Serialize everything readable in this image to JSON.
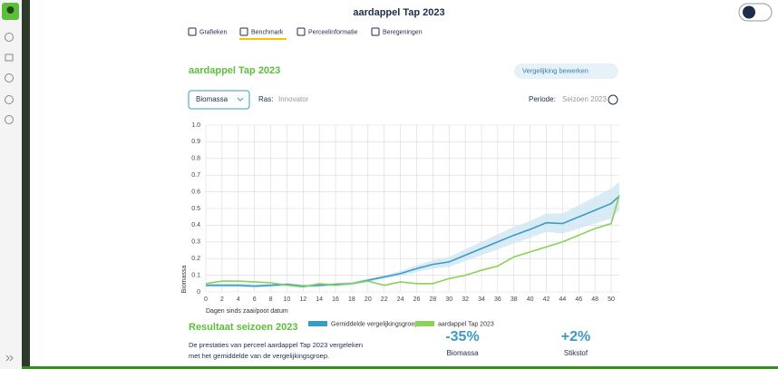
{
  "header": {
    "title": "aardappel Tap 2023"
  },
  "tabs": [
    "Grafieken",
    "Benchmark",
    "Perceelinformatie",
    "Beregeningen"
  ],
  "card": {
    "title": "aardappel Tap 2023",
    "button": "Vergelijking bewerken",
    "dropdown": "Biomassa",
    "ras_label": "Ras:",
    "ras_value": "Innovator",
    "periode_label": "Periode:",
    "periode_value": "Seizoen 2023"
  },
  "chart_data": {
    "type": "line",
    "xlabel": "Dagen sinds zaai/poot datum",
    "ylabel": "Biomassa",
    "x": [
      0,
      2,
      4,
      6,
      8,
      10,
      12,
      14,
      16,
      18,
      20,
      22,
      24,
      26,
      28,
      30,
      32,
      34,
      36,
      38,
      40,
      42,
      44,
      46,
      48,
      50,
      51
    ],
    "series": [
      {
        "name": "Gemiddelde vergelijkingsgroep",
        "color": "#3a9cc4",
        "values": [
          0.04,
          0.04,
          0.04,
          0.035,
          0.04,
          0.045,
          0.035,
          0.04,
          0.045,
          0.05,
          0.07,
          0.09,
          0.11,
          0.14,
          0.165,
          0.18,
          0.22,
          0.26,
          0.3,
          0.34,
          0.375,
          0.415,
          0.41,
          0.45,
          0.49,
          0.53,
          0.575
        ]
      },
      {
        "name": "aardappel Tap 2023",
        "color": "#8cd15a",
        "values": [
          0.05,
          0.065,
          0.065,
          0.06,
          0.055,
          0.04,
          0.03,
          0.05,
          0.04,
          0.05,
          0.065,
          0.04,
          0.06,
          0.05,
          0.05,
          0.08,
          0.1,
          0.13,
          0.155,
          0.21,
          0.24,
          0.27,
          0.3,
          0.34,
          0.38,
          0.41,
          0.58
        ]
      }
    ],
    "band": {
      "color": "#cfe6f3",
      "upper": [
        0.05,
        0.05,
        0.05,
        0.045,
        0.05,
        0.055,
        0.045,
        0.05,
        0.055,
        0.06,
        0.08,
        0.1,
        0.125,
        0.16,
        0.19,
        0.21,
        0.255,
        0.3,
        0.345,
        0.39,
        0.425,
        0.47,
        0.47,
        0.52,
        0.57,
        0.62,
        0.66
      ],
      "lower": [
        0.03,
        0.03,
        0.03,
        0.025,
        0.03,
        0.035,
        0.025,
        0.03,
        0.035,
        0.04,
        0.06,
        0.08,
        0.095,
        0.12,
        0.14,
        0.15,
        0.185,
        0.22,
        0.255,
        0.29,
        0.325,
        0.36,
        0.35,
        0.38,
        0.41,
        0.44,
        0.49
      ]
    },
    "xlim": [
      0,
      51
    ],
    "ylim": [
      0,
      1
    ],
    "xticks": [
      0,
      2,
      4,
      6,
      8,
      10,
      12,
      14,
      16,
      18,
      20,
      22,
      24,
      26,
      28,
      30,
      32,
      34,
      36,
      38,
      40,
      42,
      44,
      46,
      48,
      50
    ],
    "yticks": [
      0,
      0.1,
      0.2,
      0.3,
      0.4,
      0.5,
      0.6,
      0.7,
      0.8,
      0.9,
      {
        "value": 1,
        "label": "1.0"
      }
    ],
    "grid": true
  },
  "results": {
    "title": "Resultaat seizoen 2023",
    "text_lines": [
      "De prestaties van perceel aardappel Tap 2023 vergeleken",
      "met het gemiddelde van de vergelijkingsgroep."
    ],
    "metrics": [
      {
        "value": "-35%",
        "label": "Biomassa"
      },
      {
        "value": "+2%",
        "label": "Stikstof"
      }
    ]
  }
}
